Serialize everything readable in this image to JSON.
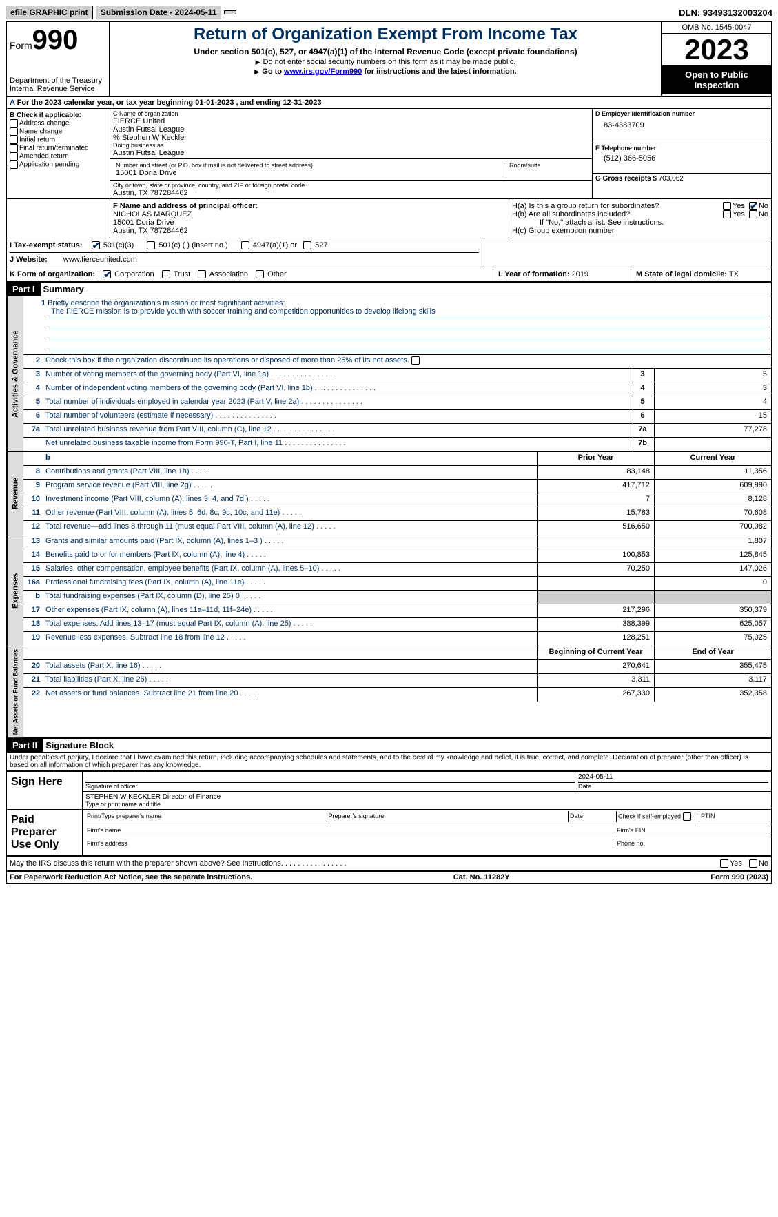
{
  "topbar": {
    "efile": "efile GRAPHIC print",
    "submission": "Submission Date - 2024-05-11",
    "dln": "DLN: 93493132003204"
  },
  "header": {
    "form_label": "Form",
    "form_number": "990",
    "dept": "Department of the Treasury",
    "irs": "Internal Revenue Service",
    "title": "Return of Organization Exempt From Income Tax",
    "subtitle": "Under section 501(c), 527, or 4947(a)(1) of the Internal Revenue Code (except private foundations)",
    "ssn_note": "Do not enter social security numbers on this form as it may be made public.",
    "goto": "Go to ",
    "goto_link": "www.irs.gov/Form990",
    "goto_suffix": " for instructions and the latest information.",
    "omb": "OMB No. 1545-0047",
    "year": "2023",
    "inspect": "Open to Public Inspection"
  },
  "row_a": "For the 2023 calendar year, or tax year beginning 01-01-2023   , and ending 12-31-2023",
  "col_b": {
    "label": "B Check if applicable:",
    "items": [
      "Address change",
      "Name change",
      "Initial return",
      "Final return/terminated",
      "Amended return",
      "Application pending"
    ]
  },
  "col_c": {
    "name_label": "C Name of organization",
    "name1": "FIERCE United",
    "name2": "Austin Futsal League",
    "name3": "% Stephen W Keckler",
    "dba_label": "Doing business as",
    "dba": "Austin Futsal League",
    "street_label": "Number and street (or P.O. box if mail is not delivered to street address)",
    "street": "15001 Doria Drive",
    "room_label": "Room/suite",
    "city_label": "City or town, state or province, country, and ZIP or foreign postal code",
    "city": "Austin, TX  787284462"
  },
  "col_d": {
    "ein_label": "D Employer identification number",
    "ein": "83-4383709",
    "phone_label": "E Telephone number",
    "phone": "(512) 366-5056",
    "gross_label": "G Gross receipts $",
    "gross": "703,062"
  },
  "row_f": {
    "label": "F  Name and address of principal officer:",
    "name": "NICHOLAS MARQUEZ",
    "street": "15001 Doria Drive",
    "city": "Austin, TX  787284462"
  },
  "row_h": {
    "ha": "H(a)  Is this a group return for subordinates?",
    "hb": "H(b)  Are all subordinates included?",
    "hb_note": "If \"No,\" attach a list. See instructions.",
    "hc": "H(c)  Group exemption number",
    "yes": "Yes",
    "no": "No"
  },
  "row_i": {
    "label": "I  Tax-exempt status:",
    "opt1": "501(c)(3)",
    "opt2": "501(c) (  ) (insert no.)",
    "opt3": "4947(a)(1) or",
    "opt4": "527"
  },
  "row_j": {
    "label": "J  Website:",
    "value": "www.fierceunited.com"
  },
  "row_k": {
    "label": "K Form of organization:",
    "opts": [
      "Corporation",
      "Trust",
      "Association",
      "Other"
    ]
  },
  "row_l": {
    "label": "L Year of formation:",
    "value": "2019"
  },
  "row_m": {
    "label": "M State of legal domicile:",
    "value": "TX"
  },
  "part1": {
    "header": "Part I",
    "title": "Summary"
  },
  "summary": {
    "line1_label": "Briefly describe the organization's mission or most significant activities:",
    "mission": "The FIERCE mission is to provide youth with soccer training and competition opportunities to develop lifelong skills",
    "line2": "Check this box          if the organization discontinued its operations or disposed of more than 25% of its net assets.",
    "lines_gov": [
      {
        "n": "3",
        "d": "Number of voting members of the governing body (Part VI, line 1a)",
        "box": "3",
        "v": "5"
      },
      {
        "n": "4",
        "d": "Number of independent voting members of the governing body (Part VI, line 1b)",
        "box": "4",
        "v": "3"
      },
      {
        "n": "5",
        "d": "Total number of individuals employed in calendar year 2023 (Part V, line 2a)",
        "box": "5",
        "v": "4"
      },
      {
        "n": "6",
        "d": "Total number of volunteers (estimate if necessary)",
        "box": "6",
        "v": "15"
      },
      {
        "n": "7a",
        "d": "Total unrelated business revenue from Part VIII, column (C), line 12",
        "box": "7a",
        "v": "77,278"
      },
      {
        "n": "",
        "d": "Net unrelated business taxable income from Form 990-T, Part I, line 11",
        "box": "7b",
        "v": ""
      }
    ],
    "col_prior": "Prior Year",
    "col_current": "Current Year",
    "revenue": [
      {
        "n": "8",
        "d": "Contributions and grants (Part VIII, line 1h)",
        "p": "83,148",
        "c": "11,356"
      },
      {
        "n": "9",
        "d": "Program service revenue (Part VIII, line 2g)",
        "p": "417,712",
        "c": "609,990"
      },
      {
        "n": "10",
        "d": "Investment income (Part VIII, column (A), lines 3, 4, and 7d )",
        "p": "7",
        "c": "8,128"
      },
      {
        "n": "11",
        "d": "Other revenue (Part VIII, column (A), lines 5, 6d, 8c, 9c, 10c, and 11e)",
        "p": "15,783",
        "c": "70,608"
      },
      {
        "n": "12",
        "d": "Total revenue—add lines 8 through 11 (must equal Part VIII, column (A), line 12)",
        "p": "516,650",
        "c": "700,082"
      }
    ],
    "expenses": [
      {
        "n": "13",
        "d": "Grants and similar amounts paid (Part IX, column (A), lines 1–3 )",
        "p": "",
        "c": "1,807"
      },
      {
        "n": "14",
        "d": "Benefits paid to or for members (Part IX, column (A), line 4)",
        "p": "100,853",
        "c": "125,845"
      },
      {
        "n": "15",
        "d": "Salaries, other compensation, employee benefits (Part IX, column (A), lines 5–10)",
        "p": "70,250",
        "c": "147,026"
      },
      {
        "n": "16a",
        "d": "Professional fundraising fees (Part IX, column (A), line 11e)",
        "p": "",
        "c": "0"
      },
      {
        "n": "b",
        "d": "Total fundraising expenses (Part IX, column (D), line 25) 0",
        "p": "SHADE",
        "c": "SHADE"
      },
      {
        "n": "17",
        "d": "Other expenses (Part IX, column (A), lines 11a–11d, 11f–24e)",
        "p": "217,296",
        "c": "350,379"
      },
      {
        "n": "18",
        "d": "Total expenses. Add lines 13–17 (must equal Part IX, column (A), line 25)",
        "p": "388,399",
        "c": "625,057"
      },
      {
        "n": "19",
        "d": "Revenue less expenses. Subtract line 18 from line 12",
        "p": "128,251",
        "c": "75,025"
      }
    ],
    "col_begin": "Beginning of Current Year",
    "col_end": "End of Year",
    "netassets": [
      {
        "n": "20",
        "d": "Total assets (Part X, line 16)",
        "p": "270,641",
        "c": "355,475"
      },
      {
        "n": "21",
        "d": "Total liabilities (Part X, line 26)",
        "p": "3,311",
        "c": "3,117"
      },
      {
        "n": "22",
        "d": "Net assets or fund balances. Subtract line 21 from line 20",
        "p": "267,330",
        "c": "352,358"
      }
    ],
    "tab_gov": "Activities & Governance",
    "tab_rev": "Revenue",
    "tab_exp": "Expenses",
    "tab_net": "Net Assets or Fund Balances"
  },
  "part2": {
    "header": "Part II",
    "title": "Signature Block"
  },
  "sig": {
    "penalty": "Under penalties of perjury, I declare that I have examined this return, including accompanying schedules and statements, and to the best of my knowledge and belief, it is true, correct, and complete. Declaration of preparer (other than officer) is based on all information of which preparer has any knowledge.",
    "sign_here": "Sign Here",
    "sig_officer": "Signature of officer",
    "date": "Date",
    "sig_date": "2024-05-11",
    "officer_name": "STEPHEN W KECKLER  Director of Finance",
    "type_name": "Type or print name and title",
    "paid": "Paid Preparer Use Only",
    "prep_name": "Print/Type preparer's name",
    "prep_sig": "Preparer's signature",
    "check_self": "Check         if self-employed",
    "ptin": "PTIN",
    "firm_name": "Firm's name",
    "firm_ein": "Firm's EIN",
    "firm_addr": "Firm's address",
    "phone": "Phone no.",
    "discuss": "May the IRS discuss this return with the preparer shown above? See Instructions."
  },
  "footer": {
    "paperwork": "For Paperwork Reduction Act Notice, see the separate instructions.",
    "cat": "Cat. No. 11282Y",
    "form": "Form 990 (2023)"
  }
}
